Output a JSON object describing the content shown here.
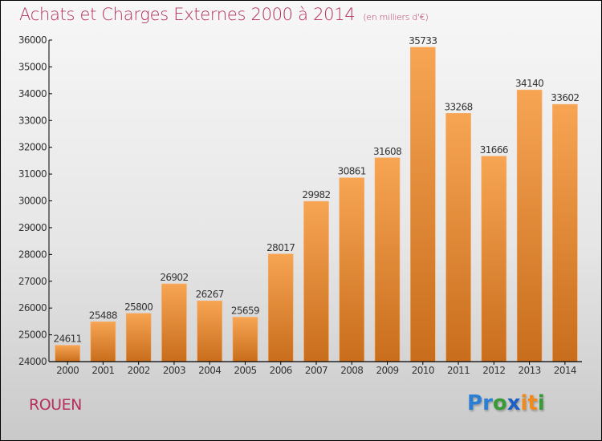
{
  "header": {
    "title": "Achats et Charges Externes 2000 à 2014",
    "subtitle": "(en milliers d'€)"
  },
  "footer": {
    "city": "ROUEN",
    "logo": {
      "letters": [
        "P",
        "r",
        "o",
        "x",
        "i",
        "t",
        "i"
      ],
      "colors": [
        "#2a7fd4",
        "#2a7fd4",
        "#3a9a3a",
        "#1d5fc4",
        "#f08a1c",
        "#f08a1c",
        "#3a9a3a"
      ]
    }
  },
  "colors": {
    "title": "#b5305e",
    "bar_top": "#f7a553",
    "bar_bottom": "#c86d1c"
  },
  "chart_data": {
    "type": "bar",
    "title": "Achats et Charges Externes 2000 à 2014",
    "subtitle": "(en milliers d'€)",
    "xlabel": "",
    "ylabel": "",
    "categories": [
      "2000",
      "2001",
      "2002",
      "2003",
      "2004",
      "2005",
      "2006",
      "2007",
      "2008",
      "2009",
      "2010",
      "2011",
      "2012",
      "2013",
      "2014"
    ],
    "values": [
      24611,
      25488,
      25800,
      26902,
      26267,
      25659,
      28017,
      29982,
      30861,
      31608,
      35733,
      33268,
      31666,
      34140,
      33602
    ],
    "data_labels": [
      "24611",
      "25488",
      "25800",
      "26902",
      "26267",
      "25659",
      "28017",
      "29982",
      "30861",
      "31608",
      "35733",
      "33268",
      "31666",
      "34140",
      "33602"
    ],
    "ylim": [
      24000,
      36000
    ],
    "yticks": [
      24000,
      25000,
      26000,
      27000,
      28000,
      29000,
      30000,
      31000,
      32000,
      33000,
      34000,
      35000,
      36000
    ],
    "ytick_labels": [
      "24000",
      "25000",
      "26000",
      "27000",
      "28000",
      "29000",
      "30000",
      "31000",
      "32000",
      "33000",
      "34000",
      "35000",
      "36000"
    ],
    "grid": false,
    "legend": "none"
  }
}
